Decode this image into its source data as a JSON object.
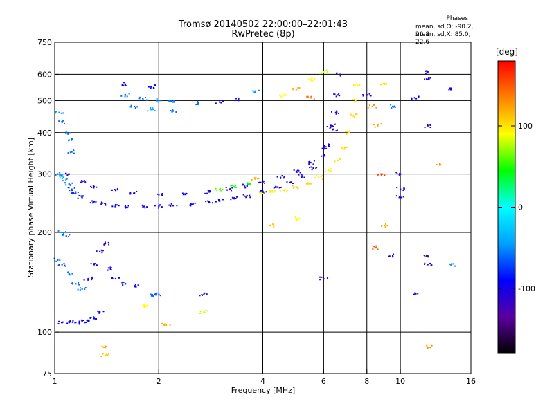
{
  "header": {
    "title": "Tromsø 20140502 22:00:00–22:01:43",
    "subtitle": "RwPretec (8p)",
    "stats_title": "Phases",
    "stats_line1": "mean, sd,O: -90.2, 20.8",
    "stats_line2": "mean, sd,X:  85.0, 22.6"
  },
  "colorbar": {
    "label": "[deg]",
    "ticks": [
      {
        "value": 100,
        "label": "100"
      },
      {
        "value": 0,
        "label": "0"
      },
      {
        "value": -100,
        "label": "-100"
      }
    ],
    "range": [
      -180,
      180
    ],
    "stops": [
      "#000000",
      "#5a00a0",
      "#0000ff",
      "#00a0ff",
      "#00ffff",
      "#00ff00",
      "#ffff00",
      "#ff8000",
      "#ff0000"
    ]
  },
  "chart_data": {
    "type": "scatter",
    "title": "Tromsø 20140502 22:00:00–22:01:43",
    "subtitle": "RwPretec (8p)",
    "xlabel": "Frequency [MHz]",
    "ylabel": "Stationary phase Virtual Height [km]",
    "x_scale": "log",
    "y_scale": "log",
    "xlim": [
      1,
      16
    ],
    "ylim": [
      75,
      750
    ],
    "xticks": [
      1,
      2,
      4,
      6,
      8,
      10,
      16
    ],
    "xtick_labels": [
      "1",
      "2",
      "4",
      "6",
      "8",
      "10",
      "16"
    ],
    "yticks": [
      75,
      100,
      200,
      300,
      400,
      500,
      600,
      750
    ],
    "ytick_labels": [
      "75",
      "100",
      "200",
      "300",
      "400",
      "500",
      "600",
      "750"
    ],
    "grid": true,
    "color_value": "phase_deg",
    "series": [
      {
        "points": [
          [
            1.05,
            107,
            -95
          ],
          [
            1.1,
            107,
            -92
          ],
          [
            1.15,
            107,
            -95
          ],
          [
            1.2,
            108,
            -90
          ],
          [
            1.25,
            108,
            -92
          ],
          [
            1.3,
            110,
            -90
          ],
          [
            1.35,
            115,
            -92
          ],
          [
            1.02,
            300,
            -60
          ],
          [
            1.05,
            295,
            -40
          ],
          [
            1.08,
            290,
            -50
          ],
          [
            1.1,
            280,
            -60
          ],
          [
            1.12,
            270,
            -70
          ],
          [
            1.15,
            262,
            -80
          ],
          [
            1.2,
            255,
            -85
          ],
          [
            1.3,
            248,
            -90
          ],
          [
            1.4,
            244,
            -92
          ],
          [
            1.5,
            242,
            -95
          ],
          [
            1.6,
            240,
            -100
          ],
          [
            1.8,
            239,
            -100
          ],
          [
            2.0,
            240,
            -90
          ],
          [
            2.2,
            241,
            -95
          ],
          [
            2.5,
            243,
            -90
          ],
          [
            2.8,
            246,
            -90
          ],
          [
            3.0,
            249,
            -92
          ],
          [
            3.3,
            253,
            -95
          ],
          [
            3.6,
            258,
            -100
          ],
          [
            4.0,
            266,
            -95
          ],
          [
            4.4,
            274,
            -95
          ],
          [
            4.8,
            283,
            -95
          ],
          [
            5.2,
            296,
            -100
          ],
          [
            5.6,
            313,
            -100
          ],
          [
            6.0,
            340,
            -100
          ],
          [
            6.2,
            365,
            -100
          ],
          [
            6.4,
            410,
            -100
          ],
          [
            6.5,
            460,
            -100
          ],
          [
            6.6,
            520,
            -110
          ],
          [
            6.7,
            600,
            -110
          ],
          [
            1.1,
            300,
            -105
          ],
          [
            1.2,
            285,
            -105
          ],
          [
            1.3,
            275,
            -110
          ],
          [
            1.5,
            268,
            -105
          ],
          [
            1.7,
            263,
            -100
          ],
          [
            2.0,
            260,
            -100
          ],
          [
            2.4,
            262,
            -95
          ],
          [
            2.8,
            265,
            -95
          ],
          [
            3.2,
            270,
            -100
          ],
          [
            3.6,
            276,
            -100
          ],
          [
            4.0,
            283,
            -100
          ],
          [
            4.5,
            293,
            -100
          ],
          [
            5.0,
            306,
            -100
          ],
          [
            5.5,
            325,
            -100
          ],
          [
            6.0,
            360,
            -100
          ],
          [
            6.3,
            420,
            -105
          ],
          [
            4.0,
            262,
            90
          ],
          [
            4.3,
            265,
            95
          ],
          [
            4.6,
            268,
            100
          ],
          [
            5.0,
            274,
            110
          ],
          [
            5.4,
            282,
            105
          ],
          [
            5.8,
            293,
            100
          ],
          [
            6.2,
            308,
            95
          ],
          [
            6.6,
            330,
            100
          ],
          [
            6.9,
            360,
            100
          ],
          [
            7.1,
            400,
            100
          ],
          [
            7.3,
            450,
            105
          ],
          [
            7.4,
            500,
            100
          ],
          [
            7.5,
            560,
            95
          ],
          [
            3.0,
            270,
            60
          ],
          [
            3.3,
            275,
            45
          ],
          [
            3.6,
            280,
            40
          ],
          [
            3.8,
            290,
            120
          ],
          [
            1.6,
            520,
            -60
          ],
          [
            1.8,
            505,
            -55
          ],
          [
            2.0,
            500,
            -50
          ],
          [
            2.2,
            495,
            -55
          ],
          [
            2.6,
            492,
            -60
          ],
          [
            3.0,
            495,
            -100
          ],
          [
            3.4,
            505,
            -110
          ],
          [
            3.8,
            530,
            -50
          ],
          [
            1.7,
            480,
            -60
          ],
          [
            1.9,
            470,
            -40
          ],
          [
            2.2,
            465,
            -60
          ],
          [
            1.6,
            560,
            -100
          ],
          [
            1.9,
            550,
            -90
          ],
          [
            4.6,
            520,
            90
          ],
          [
            5.0,
            540,
            120
          ],
          [
            5.5,
            580,
            90
          ],
          [
            6.0,
            610,
            80
          ],
          [
            1.02,
            165,
            -60
          ],
          [
            1.05,
            160,
            -70
          ],
          [
            1.1,
            150,
            -55
          ],
          [
            1.15,
            140,
            -60
          ],
          [
            1.2,
            135,
            -55
          ],
          [
            1.25,
            145,
            -100
          ],
          [
            1.3,
            160,
            -110
          ],
          [
            1.35,
            175,
            -110
          ],
          [
            1.4,
            185,
            -120
          ],
          [
            1.45,
            155,
            -100
          ],
          [
            1.5,
            145,
            -90
          ],
          [
            1.6,
            140,
            -80
          ],
          [
            1.7,
            138,
            -90
          ],
          [
            1.05,
            200,
            -50
          ],
          [
            1.08,
            195,
            -60
          ],
          [
            1.05,
            430,
            -60
          ],
          [
            1.08,
            400,
            -60
          ],
          [
            1.1,
            380,
            -60
          ],
          [
            1.12,
            350,
            -60
          ],
          [
            1.03,
            460,
            -50
          ],
          [
            1.9,
            130,
            -60
          ],
          [
            2.0,
            130,
            -70
          ],
          [
            2.7,
            130,
            -110
          ],
          [
            1.85,
            120,
            90
          ],
          [
            2.1,
            105,
            120
          ],
          [
            2.7,
            115,
            80
          ],
          [
            5.5,
            510,
            140
          ],
          [
            8.0,
            520,
            -100
          ],
          [
            8.3,
            480,
            130
          ],
          [
            8.6,
            420,
            120
          ],
          [
            9.0,
            560,
            100
          ],
          [
            9.5,
            480,
            -60
          ],
          [
            10.0,
            300,
            -110
          ],
          [
            10.0,
            270,
            -100
          ],
          [
            10.0,
            255,
            -100
          ],
          [
            12.0,
            610,
            -100
          ],
          [
            12.0,
            580,
            -110
          ],
          [
            12.0,
            420,
            -110
          ],
          [
            12.0,
            170,
            -120
          ],
          [
            12.0,
            160,
            -110
          ],
          [
            14.0,
            540,
            -100
          ],
          [
            14.0,
            160,
            -50
          ],
          [
            13.0,
            320,
            130
          ],
          [
            11.0,
            510,
            -90
          ],
          [
            11.0,
            130,
            -90
          ],
          [
            8.5,
            180,
            150
          ],
          [
            9.5,
            170,
            -100
          ],
          [
            9.0,
            210,
            120
          ],
          [
            12.0,
            90,
            130
          ],
          [
            1.4,
            90,
            120
          ],
          [
            1.4,
            85,
            110
          ],
          [
            6.0,
            145,
            -120
          ],
          [
            4.2,
            210,
            110
          ],
          [
            5.0,
            220,
            90
          ],
          [
            8.8,
            300,
            160
          ]
        ]
      }
    ]
  }
}
